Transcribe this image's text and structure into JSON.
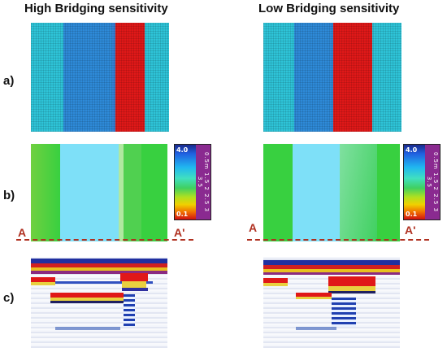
{
  "headings": {
    "high": "High Bridging sensitivity",
    "low": "Low Bridging sensitivity"
  },
  "row_labels": {
    "a": "a)",
    "b": "b)",
    "c": "c)"
  },
  "section_line": {
    "start": "A",
    "end": "A'"
  },
  "colorbar": {
    "max_label": "4.0",
    "min_label": "0.1",
    "scale_text": "0.5m 1.5 2 2.5 3 3.5"
  },
  "colors": {
    "cyan": "#2ec4d8",
    "blue": "#2e8ad8",
    "red": "#e01818",
    "green": "#38d040",
    "light_blue": "#7ee0f8",
    "section_line": "#b03020"
  }
}
